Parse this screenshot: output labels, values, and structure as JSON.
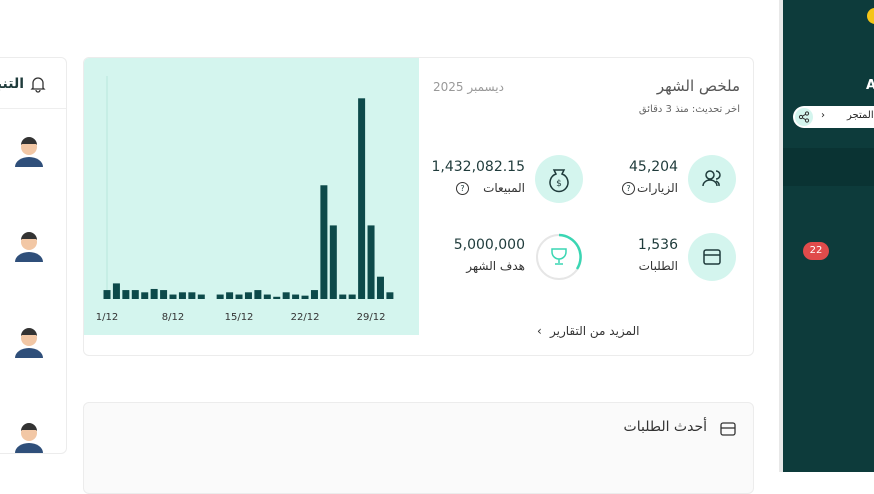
{
  "notifications": {
    "title": "التنبيهات"
  },
  "summary": {
    "title": "ملخص الشهر",
    "month": "ديسمبر 2025",
    "updated": "اخر تحديث: منذ 3 دقائق",
    "stats": [
      {
        "value": "45,204",
        "label": "الزيارات"
      },
      {
        "value": "1,432,082.15",
        "label": "المبيعات"
      },
      {
        "value": "1,536",
        "label": "الطلبات"
      },
      {
        "value": "5,000,000",
        "label": "هدف الشهر"
      }
    ],
    "more": "المزيد من التقارير"
  },
  "chart": {
    "type": "bar",
    "categories": [
      "1/12",
      null,
      null,
      null,
      null,
      null,
      null,
      "8/12",
      null,
      null,
      null,
      null,
      null,
      null,
      "15/12",
      null,
      null,
      null,
      null,
      null,
      null,
      "22/12",
      null,
      null,
      null,
      null,
      null,
      null,
      "29/12",
      null,
      null
    ],
    "values": [
      4,
      7,
      4,
      4,
      3,
      4.5,
      4,
      2,
      3,
      3,
      2,
      0,
      2,
      3,
      2,
      3,
      4,
      2,
      1,
      3,
      2,
      1.5,
      4,
      51,
      33,
      2,
      2,
      90,
      33,
      10,
      3
    ],
    "ylim": [
      0,
      100
    ],
    "color": "#0d4a4a"
  },
  "orders": {
    "title": "أحدث الطلبات"
  },
  "sidebar": {
    "brand": "A",
    "store": "المتجر",
    "badge": "22"
  }
}
